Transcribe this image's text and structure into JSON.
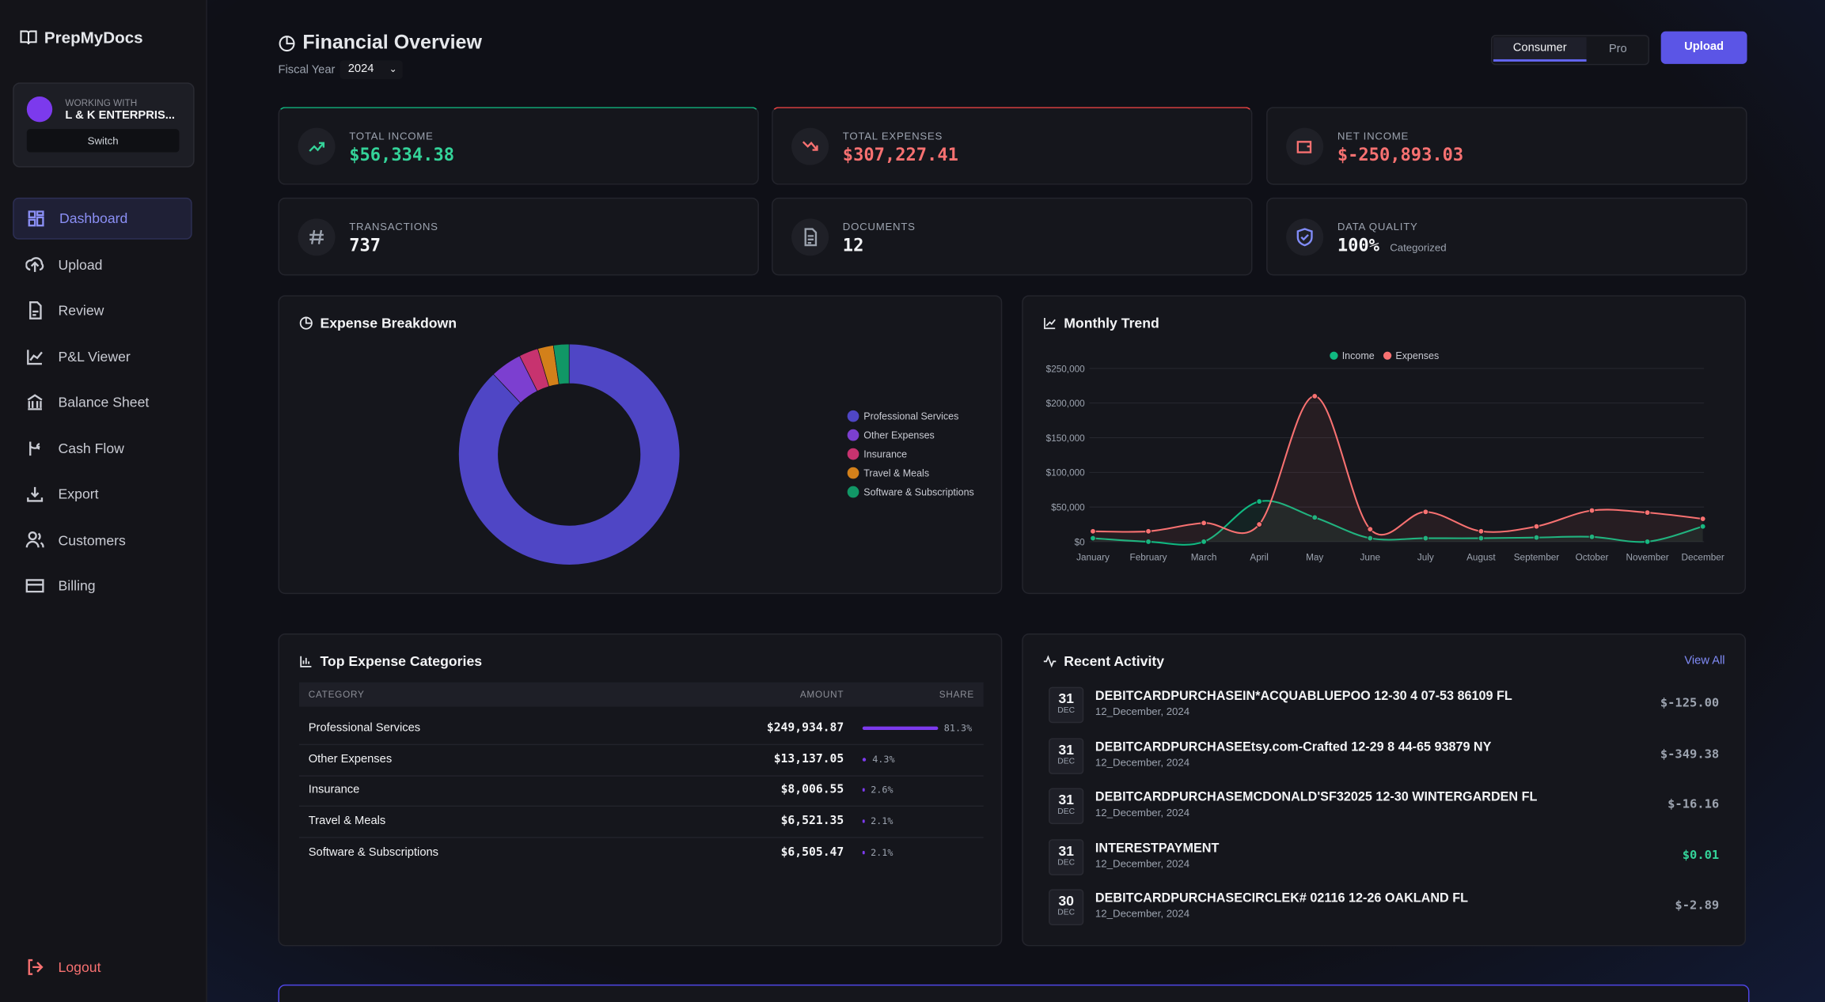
{
  "sidebar": {
    "brand": "PrepMyDocs",
    "working_with_label": "WORKING WITH",
    "client": "L & K ENTERPRIS...",
    "switch": "Switch",
    "nav": [
      "Dashboard",
      "Upload",
      "Review",
      "P&L Viewer",
      "Balance Sheet",
      "Cash Flow",
      "Export",
      "Customers",
      "Billing"
    ],
    "logout": "Logout"
  },
  "header": {
    "title": "Financial Overview",
    "fiscal_year_label": "Fiscal Year",
    "fiscal_year": "2024",
    "modes": [
      "Consumer",
      "Pro"
    ],
    "upload": "Upload"
  },
  "stats": [
    {
      "label": "TOTAL INCOME",
      "value": "$56,334.38",
      "color": "#34d399"
    },
    {
      "label": "TOTAL EXPENSES",
      "value": "$307,227.41",
      "color": "#f87171"
    },
    {
      "label": "NET INCOME",
      "value": "$-250,893.03",
      "color": "#f87171"
    },
    {
      "label": "TRANSACTIONS",
      "value": "737",
      "color": "#f3f4f6"
    },
    {
      "label": "DOCUMENTS",
      "value": "12",
      "color": "#f3f4f6"
    },
    {
      "label": "DATA QUALITY",
      "value": "100%",
      "note": "Categorized",
      "color": "#f3f4f6"
    }
  ],
  "expense_breakdown": {
    "type": "pie",
    "title": "Expense Breakdown",
    "categories": [
      "Professional Services",
      "Other Expenses",
      "Insurance",
      "Travel & Meals",
      "Software & Subscriptions"
    ],
    "values": [
      249934.87,
      13137.05,
      8006.55,
      6521.35,
      6505.47
    ],
    "colors": [
      "#4f46c5",
      "#7c3fd0",
      "#c7336f",
      "#d3801a",
      "#119766"
    ]
  },
  "monthly_trend": {
    "type": "line",
    "title": "Monthly Trend",
    "categories": [
      "January",
      "February",
      "March",
      "April",
      "May",
      "June",
      "July",
      "August",
      "September",
      "October",
      "November",
      "December"
    ],
    "series": [
      {
        "name": "Income",
        "color": "#10b981",
        "values": [
          5000,
          0,
          0,
          58000,
          35000,
          5000,
          5000,
          5000,
          6000,
          7000,
          0,
          22000
        ]
      },
      {
        "name": "Expenses",
        "color": "#f87171",
        "values": [
          15000,
          15000,
          27000,
          25000,
          210000,
          18000,
          43000,
          15000,
          22000,
          45000,
          42000,
          33000
        ]
      }
    ],
    "ylim": [
      0,
      250000
    ],
    "yticks": [
      {
        "value": 0,
        "label": "$0"
      },
      {
        "value": 50000,
        "label": "$50,000"
      },
      {
        "value": 100000,
        "label": "$100,000"
      },
      {
        "value": 150000,
        "label": "$150,000"
      },
      {
        "value": 200000,
        "label": "$200,000"
      },
      {
        "value": 250000,
        "label": "$250,000"
      }
    ],
    "grid": true
  },
  "top_expenses": {
    "title": "Top Expense Categories",
    "columns": [
      "CATEGORY",
      "AMOUNT",
      "SHARE"
    ],
    "rows": [
      {
        "category": "Professional Services",
        "amount": "$249,934.87",
        "share": 81.3,
        "share_label": "81.3%"
      },
      {
        "category": "Other Expenses",
        "amount": "$13,137.05",
        "share": 4.3,
        "share_label": "4.3%"
      },
      {
        "category": "Insurance",
        "amount": "$8,006.55",
        "share": 2.6,
        "share_label": "2.6%"
      },
      {
        "category": "Travel & Meals",
        "amount": "$6,521.35",
        "share": 2.1,
        "share_label": "2.1%"
      },
      {
        "category": "Software & Subscriptions",
        "amount": "$6,505.47",
        "share": 2.1,
        "share_label": "2.1%"
      }
    ]
  },
  "recent_activity": {
    "title": "Recent Activity",
    "view_all": "View All",
    "items": [
      {
        "day": "31",
        "month": "DEC",
        "description": "DEBITCARDPURCHASEIN*ACQUABLUEPOO 12-30 4 07-53 86109 FL",
        "date": "12_December, 2024",
        "amount": "$-125.00",
        "color": "#9ca3af"
      },
      {
        "day": "31",
        "month": "DEC",
        "description": "DEBITCARDPURCHASEEtsy.com-Crafted 12-29 8 44-65 93879 NY",
        "date": "12_December, 2024",
        "amount": "$-349.38",
        "color": "#9ca3af"
      },
      {
        "day": "31",
        "month": "DEC",
        "description": "DEBITCARDPURCHASEMCDONALD'SF32025 12-30 WINTERGARDEN FL",
        "date": "12_December, 2024",
        "amount": "$-16.16",
        "color": "#9ca3af"
      },
      {
        "day": "31",
        "month": "DEC",
        "description": "INTERESTPAYMENT",
        "date": "12_December, 2024",
        "amount": "$0.01",
        "color": "#34d399"
      },
      {
        "day": "30",
        "month": "DEC",
        "description": "DEBITCARDPURCHASECIRCLEK# 02116 12-26 OAKLAND FL",
        "date": "12_December, 2024",
        "amount": "$-2.89",
        "color": "#9ca3af"
      }
    ]
  }
}
